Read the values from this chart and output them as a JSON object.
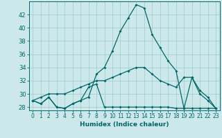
{
  "xlabel": "Humidex (Indice chaleur)",
  "background_color": "#cce8ea",
  "line_color": "#006666",
  "grid_color": "#99cccc",
  "x_values": [
    0,
    1,
    2,
    3,
    4,
    5,
    6,
    7,
    8,
    9,
    10,
    11,
    12,
    13,
    14,
    15,
    16,
    17,
    18,
    19,
    20,
    21,
    22,
    23
  ],
  "series1": [
    29,
    28.5,
    29.5,
    28,
    27.8,
    28.5,
    29,
    29.5,
    33,
    34,
    36.5,
    39.5,
    41.5,
    43.5,
    43,
    39,
    37,
    35,
    33.5,
    27.8,
    32.5,
    30.5,
    29.5,
    27.8
  ],
  "series2": [
    29,
    28.5,
    29.5,
    28,
    27.8,
    28.5,
    29,
    31,
    31.5,
    28,
    28,
    28,
    28,
    28,
    28,
    28,
    28,
    28,
    27.8,
    27.8,
    27.8,
    27.8,
    27.8,
    27.8
  ],
  "series3": [
    29,
    29.5,
    30,
    30,
    30,
    30.5,
    31,
    31.5,
    32,
    32,
    32.5,
    33,
    33.5,
    34,
    34,
    33,
    32,
    31.5,
    31,
    32.5,
    32.5,
    30,
    29,
    27.8
  ],
  "ylim": [
    27.5,
    44
  ],
  "yticks": [
    28,
    30,
    32,
    34,
    36,
    38,
    40,
    42
  ],
  "xlim": [
    -0.5,
    23.5
  ],
  "xticks": [
    0,
    1,
    2,
    3,
    4,
    5,
    6,
    7,
    8,
    9,
    10,
    11,
    12,
    13,
    14,
    15,
    16,
    17,
    18,
    19,
    20,
    21,
    22,
    23
  ],
  "xlabel_fontsize": 6.5,
  "tick_fontsize": 5.5,
  "ytick_fontsize": 6
}
